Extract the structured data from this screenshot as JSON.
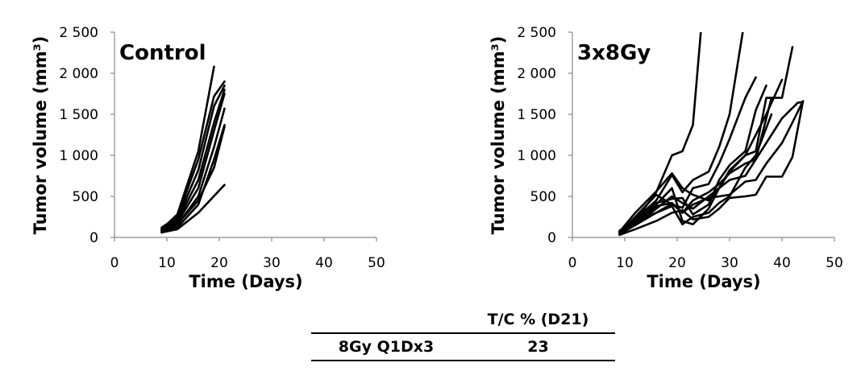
{
  "chart_data": [
    {
      "type": "line",
      "title": "Control",
      "xlabel": "Time (Days)",
      "ylabel": "Tumor volume (mm³)",
      "xlim": [
        0,
        50
      ],
      "ylim": [
        0,
        2500
      ],
      "xticks": [
        0,
        10,
        20,
        30,
        40,
        50
      ],
      "xtick_labels": [
        "0",
        "10",
        "20",
        "30",
        "40",
        "50"
      ],
      "yticks": [
        0,
        500,
        1000,
        1500,
        2000,
        2500
      ],
      "ytick_labels": [
        "0",
        "500",
        "1 000",
        "1 500",
        "2 000",
        "2 500"
      ],
      "grid": false,
      "series": [
        {
          "x": [
            9,
            12,
            16,
            19
          ],
          "y": [
            100,
            280,
            1050,
            2080
          ]
        },
        {
          "x": [
            9,
            12,
            16,
            19,
            21
          ],
          "y": [
            120,
            250,
            950,
            1720,
            1900
          ]
        },
        {
          "x": [
            9,
            12,
            16,
            19,
            21
          ],
          "y": [
            90,
            220,
            820,
            1600,
            1850
          ]
        },
        {
          "x": [
            9,
            12,
            16,
            19,
            21
          ],
          "y": [
            80,
            200,
            700,
            1400,
            1800
          ]
        },
        {
          "x": [
            9,
            12,
            16,
            19,
            21
          ],
          "y": [
            100,
            180,
            600,
            1300,
            1750
          ]
        },
        {
          "x": [
            9,
            12,
            16,
            19,
            21
          ],
          "y": [
            70,
            150,
            500,
            1100,
            1570
          ]
        },
        {
          "x": [
            9,
            12,
            16,
            19,
            21
          ],
          "y": [
            60,
            120,
            400,
            950,
            1370
          ]
        },
        {
          "x": [
            9,
            12,
            16,
            19,
            21
          ],
          "y": [
            90,
            160,
            450,
            850,
            1350
          ]
        },
        {
          "x": [
            9,
            12,
            16,
            21
          ],
          "y": [
            60,
            100,
            300,
            640
          ]
        }
      ]
    },
    {
      "type": "line",
      "title": "3x8Gy",
      "xlabel": "Time (Days)",
      "ylabel": "Tumor volume (mm³)",
      "xlim": [
        0,
        50
      ],
      "ylim": [
        0,
        2500
      ],
      "xticks": [
        0,
        10,
        20,
        30,
        40,
        50
      ],
      "xtick_labels": [
        "0",
        "10",
        "20",
        "30",
        "40",
        "50"
      ],
      "yticks": [
        0,
        500,
        1000,
        1500,
        2000,
        2500
      ],
      "ytick_labels": [
        "0",
        "500",
        "1 000",
        "1 500",
        "2 000",
        "2 500"
      ],
      "grid": false,
      "series": [
        {
          "x": [
            9,
            12,
            16,
            19,
            21,
            23,
            24.5
          ],
          "y": [
            60,
            200,
            550,
            1000,
            1050,
            1370,
            2500
          ]
        },
        {
          "x": [
            9,
            12,
            16,
            19,
            21,
            23,
            26,
            28,
            30,
            32.5
          ],
          "y": [
            80,
            220,
            450,
            760,
            550,
            700,
            800,
            1100,
            1500,
            2500
          ]
        },
        {
          "x": [
            9,
            12,
            16,
            19,
            21,
            23,
            26,
            28,
            30,
            33,
            35,
            37,
            40,
            42
          ],
          "y": [
            70,
            300,
            560,
            780,
            600,
            520,
            450,
            600,
            820,
            1000,
            1050,
            1700,
            1700,
            2320
          ]
        },
        {
          "x": [
            9,
            12,
            16,
            19,
            21,
            23,
            26,
            28,
            30,
            33,
            35
          ],
          "y": [
            50,
            250,
            520,
            400,
            360,
            600,
            650,
            900,
            1200,
            1700,
            1950
          ]
        },
        {
          "x": [
            9,
            12,
            16,
            19,
            21,
            23,
            26,
            28,
            30,
            33,
            35,
            37
          ],
          "y": [
            60,
            180,
            420,
            470,
            480,
            280,
            400,
            700,
            880,
            1050,
            1550,
            1850
          ]
        },
        {
          "x": [
            9,
            12,
            16,
            19,
            21,
            23,
            26,
            28,
            30,
            33,
            35,
            37,
            40
          ],
          "y": [
            40,
            150,
            350,
            500,
            420,
            350,
            500,
            600,
            800,
            1000,
            1250,
            1500,
            1920
          ]
        },
        {
          "x": [
            9,
            12,
            16,
            19,
            21,
            23,
            26,
            28,
            30,
            33,
            35,
            38
          ],
          "y": [
            50,
            200,
            400,
            600,
            200,
            160,
            350,
            600,
            700,
            750,
            950,
            1700
          ]
        },
        {
          "x": [
            9,
            12,
            16,
            19,
            21,
            23,
            26,
            28,
            30,
            33,
            35,
            38
          ],
          "y": [
            80,
            200,
            300,
            380,
            160,
            250,
            300,
            420,
            500,
            850,
            1000,
            1500
          ]
        },
        {
          "x": [
            9,
            12,
            16,
            19,
            21,
            23,
            26,
            28,
            30,
            33,
            35,
            37,
            40,
            42,
            44
          ],
          "y": [
            30,
            100,
            200,
            300,
            330,
            220,
            250,
            350,
            480,
            500,
            520,
            740,
            740,
            980,
            1660
          ]
        },
        {
          "x": [
            9,
            12,
            16,
            19,
            21,
            23,
            26,
            28,
            30,
            33,
            35,
            37,
            40,
            42,
            44
          ],
          "y": [
            60,
            150,
            300,
            410,
            300,
            400,
            480,
            500,
            520,
            680,
            700,
            900,
            1150,
            1400,
            1660
          ]
        },
        {
          "x": [
            9,
            12,
            16,
            19,
            21,
            23,
            26,
            28,
            30,
            33,
            35,
            38,
            40,
            43,
            44
          ],
          "y": [
            40,
            180,
            380,
            420,
            300,
            450,
            550,
            650,
            780,
            900,
            950,
            1250,
            1450,
            1640,
            1650
          ]
        }
      ]
    }
  ],
  "table": {
    "header": [
      "",
      "T/C % (D21)"
    ],
    "rows": [
      [
        "8Gy Q1Dx3",
        "23"
      ]
    ]
  }
}
